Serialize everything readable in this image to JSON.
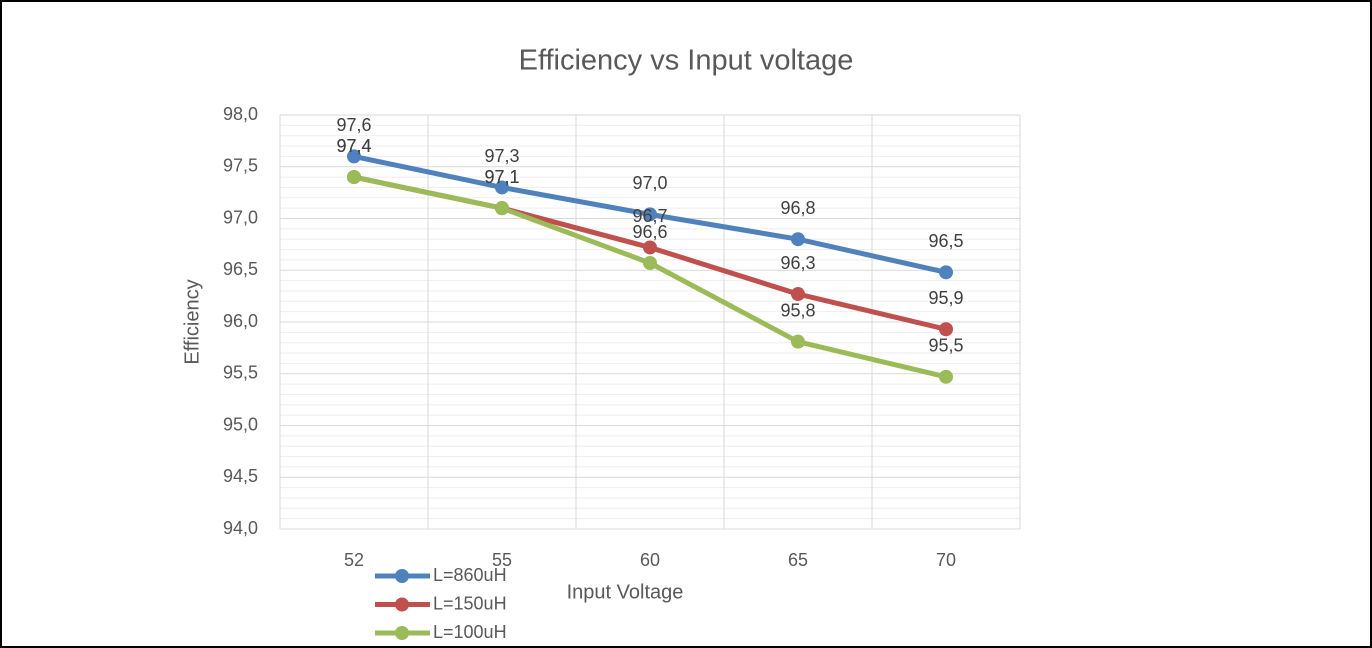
{
  "chart_data": {
    "type": "line",
    "title": "Efficiency vs Input voltage",
    "x_label": "Input Voltage",
    "y_label": "Efficiency",
    "categories": [
      "52",
      "55",
      "60",
      "65",
      "70"
    ],
    "series": [
      {
        "name": "L=860uH",
        "color": "#4F81BD",
        "values": [
          97.6,
          97.3,
          97.04,
          96.8,
          96.48
        ],
        "value_labels": [
          "97,6",
          "97,3",
          "97,0",
          "96,8",
          "96,5"
        ]
      },
      {
        "name": "L=150uH",
        "color": "#C0504D",
        "values": [
          97.4,
          97.1,
          96.72,
          96.27,
          95.93
        ],
        "value_labels": [
          "97,4",
          "97,1",
          "96,7",
          "96,3",
          "95,9"
        ]
      },
      {
        "name": "L=100uH",
        "color": "#9BBB59",
        "values": [
          97.4,
          97.1,
          96.57,
          95.81,
          95.47
        ],
        "value_labels": [
          "97,4",
          "97,1",
          "96,6",
          "95,8",
          "95,5"
        ]
      }
    ],
    "ylim": [
      94,
      98
    ],
    "yticks": [
      {
        "value": 94,
        "label": "94,0"
      },
      {
        "value": 94.5,
        "label": "94,5"
      },
      {
        "value": 95,
        "label": "95,0"
      },
      {
        "value": 95.5,
        "label": "95,5"
      },
      {
        "value": 96,
        "label": "96,0"
      },
      {
        "value": 96.5,
        "label": "96,5"
      },
      {
        "value": 97,
        "label": "97,0"
      },
      {
        "value": 97.5,
        "label": "97,5"
      },
      {
        "value": 98,
        "label": "98,0"
      }
    ],
    "grid": true,
    "minor_grid": true,
    "legend": "bottom-left"
  }
}
